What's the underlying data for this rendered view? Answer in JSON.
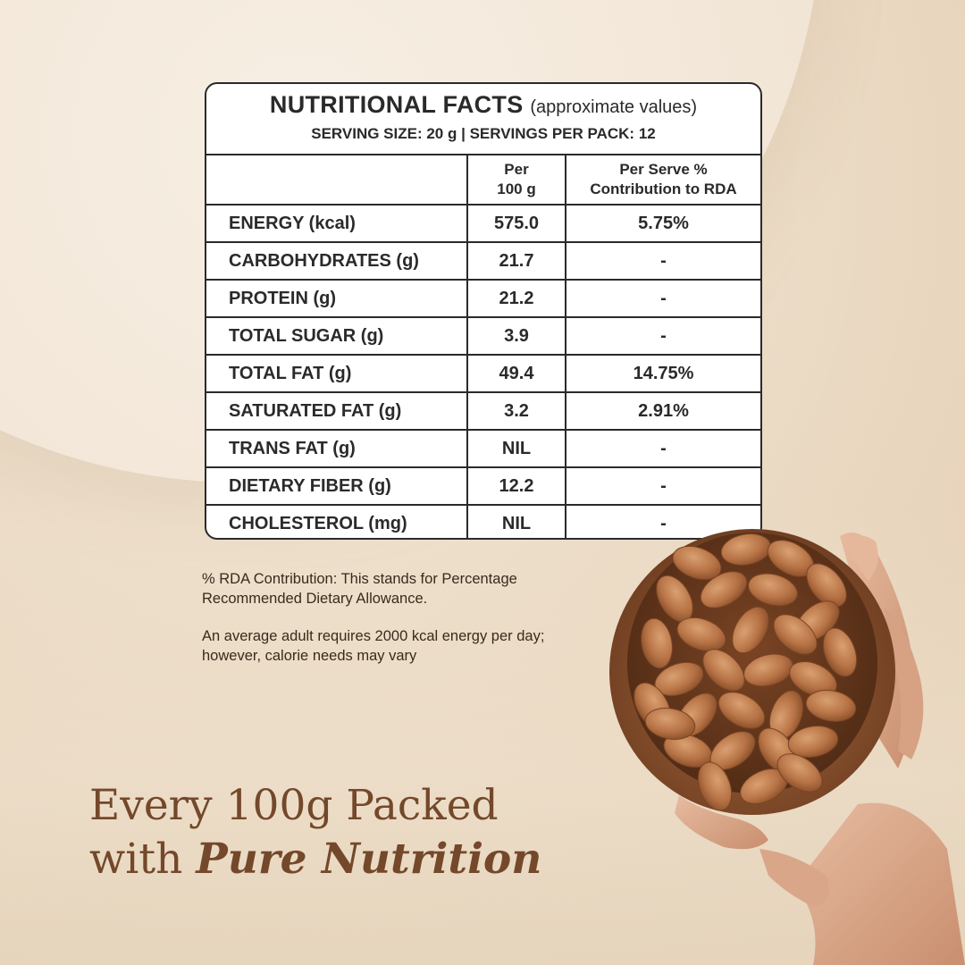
{
  "table": {
    "title": "NUTRITIONAL FACTS",
    "title_note": "(approximate values)",
    "serving_line": "SERVING SIZE: 20 g | SERVINGS PER PACK: 12",
    "col_per100_l1": "Per",
    "col_per100_l2": "100 g",
    "col_rda_l1": "Per Serve %",
    "col_rda_l2": "Contribution to RDA",
    "rows": [
      {
        "name": "ENERGY (kcal)",
        "per100": "575.0",
        "rda": "5.75%"
      },
      {
        "name": "CARBOHYDRATES (g)",
        "per100": "21.7",
        "rda": "-"
      },
      {
        "name": "PROTEIN (g)",
        "per100": "21.2",
        "rda": "-"
      },
      {
        "name": "TOTAL SUGAR (g)",
        "per100": "3.9",
        "rda": "-"
      },
      {
        "name": "TOTAL FAT (g)",
        "per100": "49.4",
        "rda": "14.75%"
      },
      {
        "name": "SATURATED FAT (g)",
        "per100": "3.2",
        "rda": "2.91%"
      },
      {
        "name": "TRANS FAT (g)",
        "per100": "NIL",
        "rda": "-"
      },
      {
        "name": "DIETARY FIBER (g)",
        "per100": "12.2",
        "rda": "-"
      },
      {
        "name": "CHOLESTEROL (mg)",
        "per100": "NIL",
        "rda": "-"
      }
    ]
  },
  "notes": {
    "rda": "% RDA Contribution: This stands for Percentage Recommended Dietary Allowance.",
    "energy": "An average adult requires 2000 kcal energy per day; however, calorie needs may vary"
  },
  "headline": {
    "line1": "Every 100g Packed",
    "line2_prefix": "with ",
    "line2_emphasis": "Pure Nutrition"
  },
  "colors": {
    "headline": "#74482a",
    "table_border": "#2a2a2a",
    "background": "#ead8c0"
  },
  "image": {
    "subject": "hand holding wooden bowl of almonds"
  }
}
